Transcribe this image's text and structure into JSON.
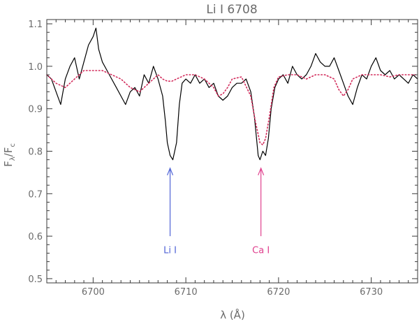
{
  "chart_data": {
    "type": "line",
    "title": "Li I 6708",
    "xlabel": "λ (Å)",
    "ylabel": "Fλ/Fc",
    "xlim": [
      6695,
      6735
    ],
    "ylim": [
      0.49,
      1.11
    ],
    "grid": false,
    "x_ticks": [
      6700,
      6710,
      6720,
      6730
    ],
    "y_ticks": [
      0.5,
      0.6,
      0.7,
      0.8,
      0.9,
      1.0,
      1.1
    ],
    "x_tick_labels": [
      "6700",
      "6710",
      "6720",
      "6730"
    ],
    "y_tick_labels": [
      "0.5",
      "0.6",
      "0.7",
      "0.8",
      "0.9",
      "1.0",
      "1.1"
    ],
    "series": [
      {
        "style": "solid",
        "color": "#000000",
        "x": [
          6695.0,
          6695.5,
          6696.0,
          6696.5,
          6697.0,
          6697.5,
          6698.0,
          6698.5,
          6699.0,
          6699.5,
          6700.0,
          6700.3,
          6700.6,
          6701.0,
          6701.5,
          6702.0,
          6702.5,
          6703.0,
          6703.5,
          6704.0,
          6704.5,
          6705.0,
          6705.5,
          6706.0,
          6706.5,
          6707.0,
          6707.5,
          6707.8,
          6708.0,
          6708.3,
          6708.6,
          6709.0,
          6709.3,
          6709.6,
          6710.0,
          6710.5,
          6711.0,
          6711.5,
          6712.0,
          6712.5,
          6713.0,
          6713.5,
          6714.0,
          6714.5,
          6715.0,
          6715.5,
          6716.0,
          6716.5,
          6717.0,
          6717.4,
          6717.8,
          6718.0,
          6718.3,
          6718.6,
          6718.9,
          6719.2,
          6719.6,
          6720.0,
          6720.5,
          6721.0,
          6721.5,
          6722.0,
          6722.5,
          6723.0,
          6723.5,
          6724.0,
          6724.5,
          6725.0,
          6725.5,
          6726.0,
          6726.5,
          6727.0,
          6727.5,
          6728.0,
          6728.5,
          6729.0,
          6729.5,
          6730.0,
          6730.5,
          6731.0,
          6731.5,
          6732.0,
          6732.5,
          6733.0,
          6733.5,
          6734.0,
          6734.5,
          6735.0
        ],
        "y": [
          0.98,
          0.97,
          0.94,
          0.91,
          0.97,
          1.0,
          1.02,
          0.97,
          1.01,
          1.05,
          1.07,
          1.09,
          1.04,
          1.01,
          0.99,
          0.97,
          0.95,
          0.93,
          0.91,
          0.94,
          0.95,
          0.93,
          0.98,
          0.96,
          1.0,
          0.97,
          0.93,
          0.87,
          0.82,
          0.79,
          0.78,
          0.82,
          0.91,
          0.96,
          0.97,
          0.96,
          0.98,
          0.96,
          0.97,
          0.95,
          0.96,
          0.93,
          0.92,
          0.93,
          0.95,
          0.96,
          0.96,
          0.97,
          0.94,
          0.88,
          0.79,
          0.78,
          0.8,
          0.79,
          0.83,
          0.9,
          0.95,
          0.97,
          0.98,
          0.96,
          1.0,
          0.98,
          0.97,
          0.98,
          1.0,
          1.03,
          1.01,
          1.0,
          1.0,
          1.02,
          0.99,
          0.96,
          0.93,
          0.91,
          0.95,
          0.98,
          0.97,
          1.0,
          1.02,
          0.99,
          0.98,
          0.99,
          0.97,
          0.98,
          0.97,
          0.96,
          0.98,
          0.97
        ]
      },
      {
        "style": "dotted",
        "color": "#d22a5a",
        "x": [
          6695,
          6696,
          6697,
          6698,
          6699,
          6700,
          6701,
          6702,
          6703,
          6704,
          6705,
          6706,
          6707,
          6707.5,
          6708,
          6708.5,
          6709,
          6709.5,
          6710,
          6711,
          6712,
          6713,
          6713.5,
          6714,
          6714.5,
          6715,
          6716,
          6717,
          6717.5,
          6718,
          6718.3,
          6718.6,
          6719,
          6719.5,
          6720,
          6721,
          6722,
          6723,
          6724,
          6725,
          6726,
          6726.5,
          6727,
          6727.5,
          6728,
          6729,
          6730,
          6731,
          6732,
          6733,
          6734,
          6735
        ],
        "y": [
          0.98,
          0.96,
          0.95,
          0.97,
          0.99,
          0.99,
          0.99,
          0.98,
          0.97,
          0.95,
          0.94,
          0.96,
          0.98,
          0.97,
          0.965,
          0.965,
          0.97,
          0.975,
          0.98,
          0.98,
          0.97,
          0.95,
          0.93,
          0.935,
          0.95,
          0.97,
          0.975,
          0.93,
          0.87,
          0.82,
          0.815,
          0.83,
          0.88,
          0.95,
          0.975,
          0.98,
          0.98,
          0.97,
          0.98,
          0.98,
          0.97,
          0.945,
          0.93,
          0.945,
          0.97,
          0.98,
          0.98,
          0.98,
          0.975,
          0.98,
          0.98,
          0.98
        ]
      }
    ],
    "annotations": [
      {
        "text": "Li I",
        "x": 6708.3,
        "y_from": 0.6,
        "y_to": 0.76,
        "text_y": 0.56,
        "color": "#4f63d6"
      },
      {
        "text": "Ca I",
        "x": 6718.1,
        "y_from": 0.6,
        "y_to": 0.76,
        "text_y": 0.56,
        "color": "#e0408e"
      }
    ]
  }
}
